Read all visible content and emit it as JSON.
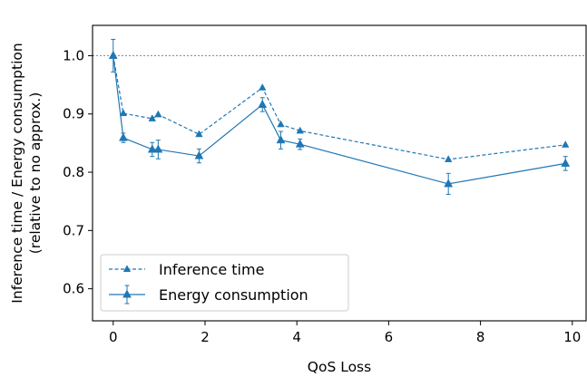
{
  "chart_data": {
    "type": "line",
    "xlabel": "QoS Loss",
    "ylabel_lines": [
      "Inference time / Energy consumption",
      "(relative to no approx.)"
    ],
    "xlim": [
      -0.45,
      10.3
    ],
    "ylim": [
      0.545,
      1.052
    ],
    "x_ticks": [
      0,
      2,
      4,
      6,
      8,
      10
    ],
    "y_ticks": [
      0.6,
      0.7,
      0.8,
      0.9,
      1.0
    ],
    "y_tick_labels": [
      "0.6",
      "0.7",
      "0.8",
      "0.9",
      "1.0"
    ],
    "reference_line": {
      "y": 1.0,
      "style": "dotted",
      "color": "#808080"
    },
    "legend_position": "lower-left",
    "series": [
      {
        "name": "Inference time",
        "line_style": "dashed",
        "marker": "triangle",
        "color": "#1f77b4",
        "x": [
          0.0,
          0.22,
          0.85,
          0.98,
          1.87,
          3.25,
          3.65,
          4.07,
          7.3,
          9.85
        ],
        "y": [
          1.0,
          0.901,
          0.892,
          0.899,
          0.865,
          0.945,
          0.882,
          0.871,
          0.822,
          0.847
        ]
      },
      {
        "name": "Energy consumption",
        "line_style": "solid",
        "marker": "triangle",
        "color": "#1f77b4",
        "x": [
          0.0,
          0.22,
          0.85,
          0.98,
          1.87,
          3.25,
          3.65,
          4.07,
          7.3,
          9.85
        ],
        "y": [
          1.0,
          0.859,
          0.839,
          0.839,
          0.828,
          0.916,
          0.855,
          0.848,
          0.78,
          0.815
        ],
        "error": [
          0.028,
          0.008,
          0.012,
          0.016,
          0.012,
          0.012,
          0.015,
          0.009,
          0.018,
          0.012
        ]
      }
    ]
  }
}
